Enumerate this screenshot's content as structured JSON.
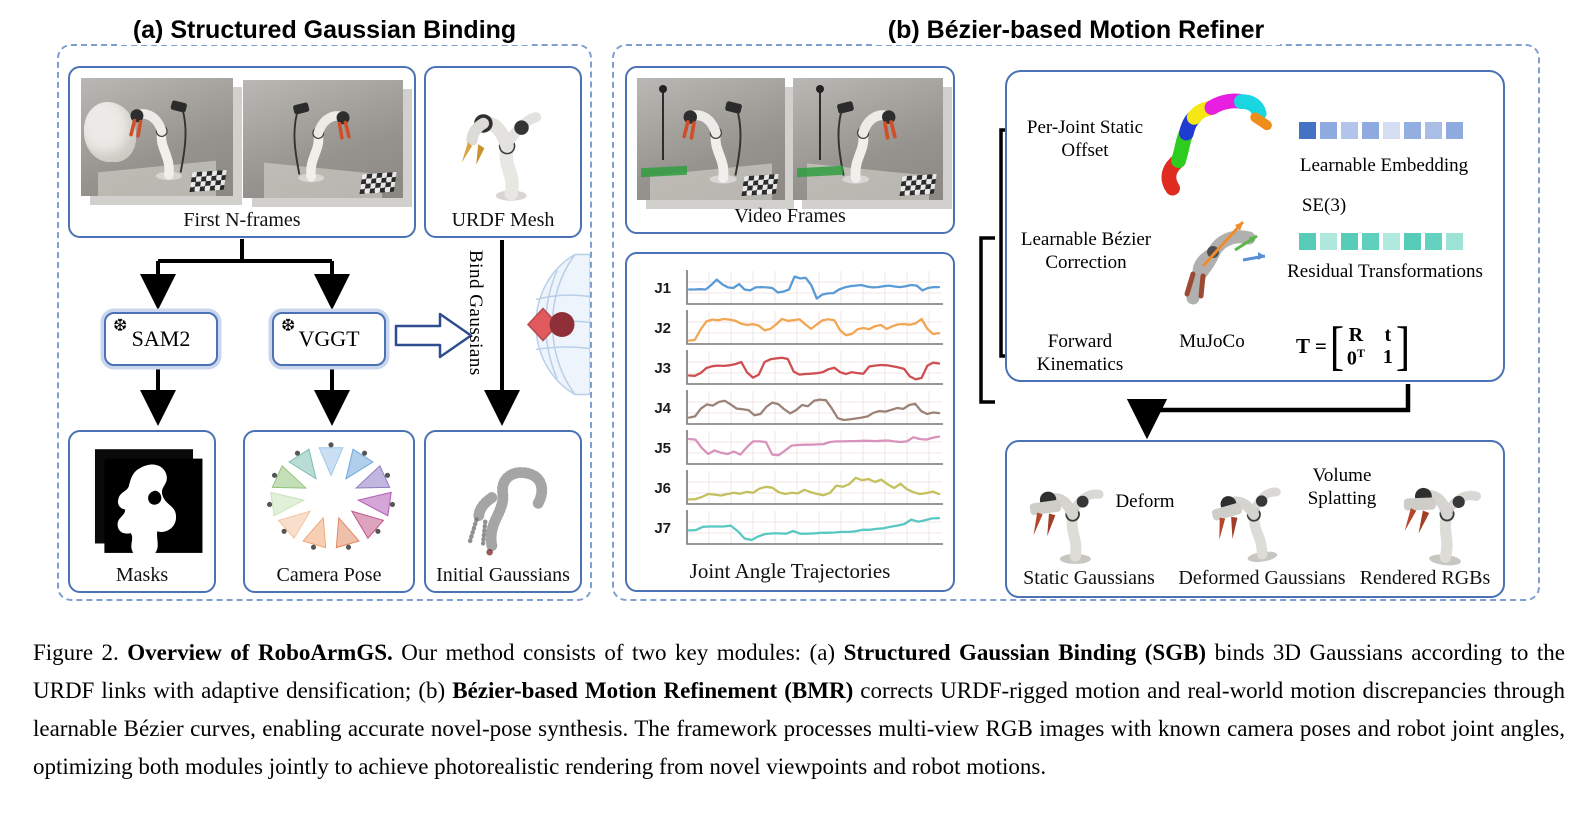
{
  "panel_a": {
    "title": "(a) Structured Gaussian Binding",
    "first_n_frames_label": "First N-frames",
    "urdf_mesh_label": "URDF Mesh",
    "sam2_label": "SAM2",
    "vggt_label": "VGGT",
    "snowflake": "❆",
    "bind_gaussians_label": "Bind Gaussians",
    "masks_label": "Masks",
    "camera_pose_label": "Camera Pose",
    "initial_gaussians_label": "Initial Gaussians",
    "camera_pose_colors": [
      "#9ec7e8",
      "#6fa8dc",
      "#8e7cc3",
      "#b05bb5",
      "#c2578a",
      "#e08a63",
      "#f0a878",
      "#f4c4a0",
      "#c9e3b8",
      "#93c47d",
      "#7fbfb0"
    ]
  },
  "panel_b": {
    "title": "(b) Bézier-based Motion Refiner",
    "video_frames_label": "Video Frames",
    "refiner": {
      "per_joint_line1": "Per-Joint Static",
      "per_joint_line2": "Offset",
      "learnable_embedding": "Learnable Embedding",
      "se3": "SE(3)",
      "residual_transformations": "Residual Transformations",
      "bezier_line1": "Learnable Bézier",
      "bezier_line2": "Correction",
      "forward_line1": "Forward",
      "forward_line2": "Kinematics",
      "mujoco": "MuJoCo",
      "formula_lhs": "T =",
      "lbracket": "[",
      "rbracket": "]",
      "m_r": "R",
      "m_t": "t",
      "m_zero": "0",
      "m_zero_sup": "T",
      "m_one": "1",
      "embedding_colors": [
        "#4472c4",
        "#8faade",
        "#b3c4ea",
        "#8faade",
        "#d4ddf2",
        "#93aee0",
        "#aabde6",
        "#8faade"
      ],
      "residual_colors": [
        "#57cdb9",
        "#aee8dd",
        "#57cdb9",
        "#5fd0bd",
        "#b0e9de",
        "#57cdb9",
        "#63d2c0",
        "#9de4d6"
      ]
    },
    "render_box": {
      "static_gaussians": "Static Gaussians",
      "deform": "Deform",
      "deformed_gaussians": "Deformed Gaussians",
      "volume_line1": "Volume",
      "volume_line2": "Splatting",
      "rendered_rgbs": "Rendered RGBs"
    }
  },
  "chart_data": {
    "type": "line",
    "title": "Joint Angle Trajectories",
    "xlabel": "",
    "ylabel": "",
    "note": "seven stacked unlabeled mini line charts, one per robot joint; values normalized 0-1 over time",
    "grid": true,
    "legend_position": "left-row-labels",
    "series": [
      {
        "name": "J1",
        "color": "#5b9bd5",
        "values": [
          0.45,
          0.45,
          0.46,
          0.45,
          0.6,
          0.78,
          0.62,
          0.52,
          0.5,
          0.63,
          0.45,
          0.42,
          0.52,
          0.53,
          0.52,
          0.5,
          0.35,
          0.38,
          0.45,
          0.88,
          0.82,
          0.84,
          0.6,
          0.15,
          0.28,
          0.32,
          0.33,
          0.45,
          0.52,
          0.56,
          0.58,
          0.6,
          0.55,
          0.52,
          0.53,
          0.56,
          0.58,
          0.55,
          0.53,
          0.56,
          0.6,
          0.58,
          0.42,
          0.5,
          0.53,
          0.53
        ]
      },
      {
        "name": "J2",
        "color": "#f2a654",
        "values": [
          0.08,
          0.1,
          0.45,
          0.72,
          0.78,
          0.76,
          0.8,
          0.78,
          0.74,
          0.64,
          0.6,
          0.63,
          0.58,
          0.42,
          0.47,
          0.62,
          0.8,
          0.74,
          0.76,
          0.79,
          0.62,
          0.47,
          0.62,
          0.76,
          0.79,
          0.76,
          0.42,
          0.26,
          0.3,
          0.46,
          0.5,
          0.46,
          0.56,
          0.6,
          0.47,
          0.56,
          0.62,
          0.63,
          0.61,
          0.66,
          0.8,
          0.47,
          0.3,
          0.33
        ]
      },
      {
        "name": "J3",
        "color": "#cf4e52",
        "values": [
          0.25,
          0.24,
          0.33,
          0.5,
          0.56,
          0.58,
          0.57,
          0.59,
          0.63,
          0.7,
          0.35,
          0.18,
          0.28,
          0.7,
          0.79,
          0.82,
          0.84,
          0.8,
          0.38,
          0.28,
          0.3,
          0.31,
          0.33,
          0.36,
          0.46,
          0.51,
          0.36,
          0.3,
          0.36,
          0.33,
          0.31,
          0.55,
          0.58,
          0.6,
          0.59,
          0.56,
          0.52,
          0.47,
          0.22,
          0.12,
          0.17,
          0.58,
          0.68,
          0.65
        ]
      },
      {
        "name": "J4",
        "color": "#9d8377",
        "values": [
          0.18,
          0.22,
          0.48,
          0.62,
          0.58,
          0.7,
          0.74,
          0.62,
          0.48,
          0.46,
          0.43,
          0.26,
          0.3,
          0.54,
          0.68,
          0.63,
          0.46,
          0.32,
          0.43,
          0.6,
          0.56,
          0.74,
          0.78,
          0.76,
          0.48,
          0.16,
          0.1,
          0.12,
          0.15,
          0.18,
          0.22,
          0.34,
          0.4,
          0.38,
          0.44,
          0.5,
          0.47,
          0.6,
          0.64,
          0.4,
          0.3,
          0.35,
          0.33
        ]
      },
      {
        "name": "J5",
        "color": "#d893bd",
        "values": [
          0.8,
          0.78,
          0.5,
          0.3,
          0.42,
          0.34,
          0.3,
          0.38,
          0.28,
          0.52,
          0.72,
          0.72,
          0.7,
          0.28,
          0.26,
          0.42,
          0.58,
          0.6,
          0.61,
          0.61,
          0.62,
          0.63,
          0.7,
          0.72,
          0.72,
          0.73,
          0.73,
          0.74,
          0.74,
          0.73,
          0.74,
          0.75,
          0.72,
          0.7,
          0.72,
          0.86,
          0.8,
          0.78,
          0.84,
          0.88
        ]
      },
      {
        "name": "J6",
        "color": "#c4c05e",
        "values": [
          0.12,
          0.13,
          0.2,
          0.3,
          0.28,
          0.25,
          0.3,
          0.34,
          0.31,
          0.37,
          0.34,
          0.48,
          0.54,
          0.51,
          0.36,
          0.3,
          0.34,
          0.32,
          0.44,
          0.36,
          0.3,
          0.26,
          0.34,
          0.58,
          0.54,
          0.63,
          0.84,
          0.76,
          0.8,
          0.7,
          0.78,
          0.62,
          0.5,
          0.64,
          0.46,
          0.36,
          0.3,
          0.33,
          0.38,
          0.3
        ]
      },
      {
        "name": "J7",
        "color": "#59c8c3",
        "values": [
          0.42,
          0.43,
          0.54,
          0.55,
          0.55,
          0.55,
          0.58,
          0.4,
          0.15,
          0.1,
          0.22,
          0.3,
          0.32,
          0.32,
          0.31,
          0.4,
          0.31,
          0.31,
          0.32,
          0.34,
          0.34,
          0.35,
          0.37,
          0.37,
          0.39,
          0.44,
          0.44,
          0.47,
          0.49,
          0.54,
          0.58,
          0.63,
          0.78,
          0.71,
          0.76,
          0.82,
          0.83
        ]
      }
    ]
  },
  "caption": {
    "segments": [
      {
        "text": "Figure 2.  ",
        "bold": false
      },
      {
        "text": "Overview of RoboArmGS.",
        "bold": true
      },
      {
        "text": " Our method consists of two key modules: (a) ",
        "bold": false
      },
      {
        "text": "Structured Gaussian Binding (SGB)",
        "bold": true
      },
      {
        "text": " binds 3D Gaussians according to the URDF links with adaptive densification; (b) ",
        "bold": false
      },
      {
        "text": "Bézier-based Motion Refinement (BMR)",
        "bold": true
      },
      {
        "text": " corrects URDF-rigged motion and real-world motion discrepancies through learnable Bézier curves, enabling accurate novel-pose synthesis.  The framework processes multi-view RGB images with known camera poses and robot joint angles, optimizing both modules jointly to achieve photorealistic rendering from novel viewpoints and robot motions.",
        "bold": false
      }
    ]
  }
}
